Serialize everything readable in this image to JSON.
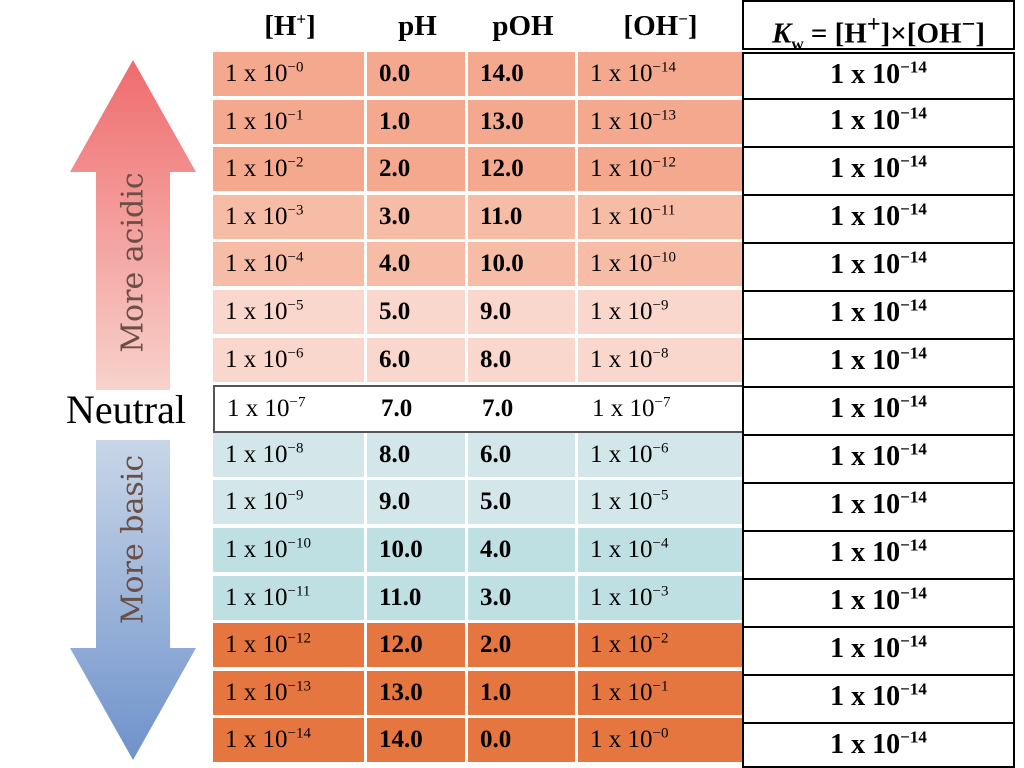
{
  "headers": {
    "h": {
      "base": "[H",
      "sup": "+",
      "end": "]"
    },
    "ph": "pH",
    "poh": "pOH",
    "oh": {
      "base": "[OH",
      "sup": "−",
      "end": "]"
    }
  },
  "kw_header": {
    "k": "K",
    "sub": "w",
    "rest1": " = [H",
    "sup1": "+",
    "rest2": "]×[OH",
    "sup2": "−",
    "rest3": "]"
  },
  "rows": [
    {
      "h_base": "1 x 10",
      "h_exp": "−0",
      "ph": "0.0",
      "poh": "14.0",
      "oh_base": "1 x 10",
      "oh_exp": "−14",
      "color": "#f4a98e"
    },
    {
      "h_base": "1 x 10",
      "h_exp": "−1",
      "ph": "1.0",
      "poh": "13.0",
      "oh_base": "1 x 10",
      "oh_exp": "−13",
      "color": "#f4a98e"
    },
    {
      "h_base": "1 x 10",
      "h_exp": "−2",
      "ph": "2.0",
      "poh": "12.0",
      "oh_base": "1 x 10",
      "oh_exp": "−12",
      "color": "#f4a98e"
    },
    {
      "h_base": "1 x 10",
      "h_exp": "−3",
      "ph": "3.0",
      "poh": "11.0",
      "oh_base": "1 x 10",
      "oh_exp": "−11",
      "color": "#f7bca6"
    },
    {
      "h_base": "1 x 10",
      "h_exp": "−4",
      "ph": "4.0",
      "poh": "10.0",
      "oh_base": "1 x 10",
      "oh_exp": "−10",
      "color": "#f7bca6"
    },
    {
      "h_base": "1 x 10",
      "h_exp": "−5",
      "ph": "5.0",
      "poh": "9.0",
      "oh_base": "1 x 10",
      "oh_exp": "−9",
      "color": "#fad7cc"
    },
    {
      "h_base": "1 x 10",
      "h_exp": "−6",
      "ph": "6.0",
      "poh": "8.0",
      "oh_base": "1 x 10",
      "oh_exp": "−8",
      "color": "#fad7cc"
    },
    {
      "h_base": "1 x 10",
      "h_exp": "−7",
      "ph": "7.0",
      "poh": "7.0",
      "oh_base": "1 x 10",
      "oh_exp": "−7",
      "color": "#ffffff"
    },
    {
      "h_base": "1 x 10",
      "h_exp": "−8",
      "ph": "8.0",
      "poh": "6.0",
      "oh_base": "1 x 10",
      "oh_exp": "−6",
      "color": "#d3e7ea"
    },
    {
      "h_base": "1 x 10",
      "h_exp": "−9",
      "ph": "9.0",
      "poh": "5.0",
      "oh_base": "1 x 10",
      "oh_exp": "−5",
      "color": "#d3e7ea"
    },
    {
      "h_base": "1 x 10",
      "h_exp": "−10",
      "ph": "10.0",
      "poh": "4.0",
      "oh_base": "1 x 10",
      "oh_exp": "−4",
      "color": "#bfe0e2"
    },
    {
      "h_base": "1 x 10",
      "h_exp": "−11",
      "ph": "11.0",
      "poh": "3.0",
      "oh_base": "1 x 10",
      "oh_exp": "−3",
      "color": "#bfe0e2"
    },
    {
      "h_base": "1 x 10",
      "h_exp": "−12",
      "ph": "12.0",
      "poh": "2.0",
      "oh_base": "1 x 10",
      "oh_exp": "−2",
      "color": "#e6763f"
    },
    {
      "h_base": "1 x 10",
      "h_exp": "−13",
      "ph": "13.0",
      "poh": "1.0",
      "oh_base": "1 x 10",
      "oh_exp": "−1",
      "color": "#e6763f"
    },
    {
      "h_base": "1 x 10",
      "h_exp": "−14",
      "ph": "14.0",
      "poh": "0.0",
      "oh_base": "1 x 10",
      "oh_exp": "−0",
      "color": "#e6763f"
    }
  ],
  "kw_value": {
    "base": "1  x  10",
    "exp": "−14"
  },
  "labels": {
    "acidic": "More acidic",
    "basic": "More basic",
    "neutral": "Neutral"
  },
  "colors": {
    "acid_arrow_top": "#ef6b6d",
    "acid_arrow_bottom": "#f8d2cc",
    "base_arrow_top": "#c9d6e8",
    "base_arrow_bottom": "#6e92cb"
  }
}
